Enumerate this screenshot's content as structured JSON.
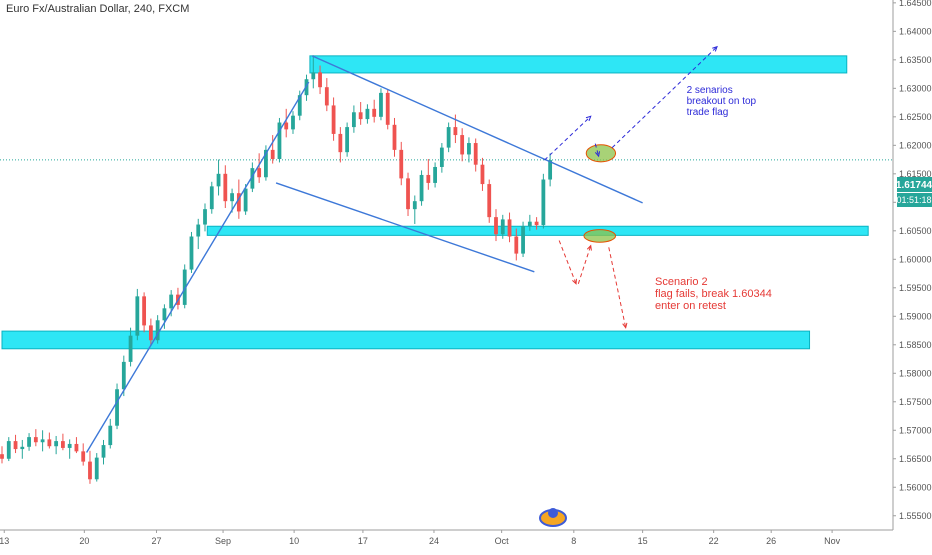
{
  "header": {
    "title": "Euro Fx/Australian Dollar, 240, FXCM"
  },
  "price_badge": {
    "price": "1.61744",
    "countdown": "01:51:18",
    "color": "#26a69a"
  },
  "chart_data": {
    "type": "candlestick",
    "yaxis": {
      "range": [
        1.5525,
        1.6455
      ],
      "ticks": [
        "1.55500",
        "1.56000",
        "1.56500",
        "1.57000",
        "1.57500",
        "1.58000",
        "1.58500",
        "1.59000",
        "1.59500",
        "1.60000",
        "1.60500",
        "1.61000",
        "1.61500",
        "1.62000",
        "1.62500",
        "1.63000",
        "1.63500",
        "1.64000",
        "1.64500"
      ]
    },
    "xaxis": {
      "range": [
        0,
        79
      ],
      "ticks": [
        {
          "label": "13",
          "x": 0.2
        },
        {
          "label": "20",
          "x": 7.3
        },
        {
          "label": "27",
          "x": 13.7
        },
        {
          "label": "Sep",
          "x": 19.6
        },
        {
          "label": "10",
          "x": 25.9
        },
        {
          "label": "17",
          "x": 32.0
        },
        {
          "label": "24",
          "x": 38.3
        },
        {
          "label": "Oct",
          "x": 44.3
        },
        {
          "label": "8",
          "x": 50.7
        },
        {
          "label": "15",
          "x": 56.8
        },
        {
          "label": "22",
          "x": 63.1
        },
        {
          "label": "26",
          "x": 68.2
        },
        {
          "label": "Nov",
          "x": 73.6
        }
      ]
    },
    "colors": {
      "up": "#26a69a",
      "down": "#ef5350",
      "zone": "#2ee6f5",
      "zone_edge": "#0ab3c2",
      "trend": "#3d78d8",
      "blue_note": "#2d2ad8",
      "red_note": "#e53935"
    },
    "zones": [
      {
        "x0": 27.3,
        "x1": 74.9,
        "y0": 1.6327,
        "y1": 1.6357
      },
      {
        "x0": 18.2,
        "x1": 76.8,
        "y0": 1.6042,
        "y1": 1.6058
      },
      {
        "x0": 0.0,
        "x1": 71.6,
        "y0": 1.5843,
        "y1": 1.5874
      }
    ],
    "trendlines": [
      {
        "x0": 7.5,
        "y0": 1.5661,
        "x1": 27.2,
        "y1": 1.6311
      },
      {
        "x0": 27.5,
        "y0": 1.6357,
        "x1": 56.8,
        "y1": 1.6099
      },
      {
        "x0": 24.3,
        "y0": 1.6134,
        "x1": 47.2,
        "y1": 1.5978
      }
    ],
    "ellipses": [
      {
        "cx": 53.1,
        "cy": 1.6186,
        "rx": 1.3,
        "ry": 0.0015
      },
      {
        "cx": 53.0,
        "cy": 1.6041,
        "rx": 1.4,
        "ry": 0.0011
      }
    ],
    "dashed_blue": [
      [
        [
          48.1,
          1.6174
        ],
        [
          52.2,
          1.6251
        ]
      ],
      [
        [
          52.6,
          1.6203
        ],
        [
          52.9,
          1.6181
        ]
      ],
      [
        [
          54.1,
          1.6196
        ],
        [
          63.4,
          1.6373
        ]
      ]
    ],
    "dashed_red": [
      [
        [
          49.4,
          1.6033
        ],
        [
          50.9,
          1.5957
        ]
      ],
      [
        [
          51.1,
          1.5957
        ],
        [
          52.2,
          1.6024
        ]
      ],
      [
        [
          53.8,
          1.6021
        ],
        [
          55.3,
          1.588
        ]
      ]
    ],
    "annotations": [
      {
        "lines": [
          "2 senarios",
          "breakout on top",
          "trade flag"
        ],
        "x": 60.7,
        "y": 1.6292,
        "color": "blue_note"
      },
      {
        "lines": [
          "Scenario 2",
          "flag fails, break 1.60344",
          "enter on retest"
        ],
        "x": 57.9,
        "y": 1.5955,
        "color": "red_note"
      }
    ],
    "last_price": 1.61744,
    "candles": [
      {
        "x": 0.0,
        "o": 1.5658,
        "h": 1.5672,
        "l": 1.5642,
        "c": 1.565
      },
      {
        "x": 0.6,
        "o": 1.565,
        "h": 1.5688,
        "l": 1.5646,
        "c": 1.5681
      },
      {
        "x": 1.2,
        "o": 1.5681,
        "h": 1.5692,
        "l": 1.566,
        "c": 1.5667
      },
      {
        "x": 1.8,
        "o": 1.5667,
        "h": 1.5683,
        "l": 1.565,
        "c": 1.5671
      },
      {
        "x": 2.4,
        "o": 1.5671,
        "h": 1.5695,
        "l": 1.5664,
        "c": 1.5688
      },
      {
        "x": 3.0,
        "o": 1.5688,
        "h": 1.5702,
        "l": 1.5672,
        "c": 1.5679
      },
      {
        "x": 3.6,
        "o": 1.5679,
        "h": 1.57,
        "l": 1.5663,
        "c": 1.5684
      },
      {
        "x": 4.2,
        "o": 1.5684,
        "h": 1.5696,
        "l": 1.5668,
        "c": 1.5672
      },
      {
        "x": 4.8,
        "o": 1.5672,
        "h": 1.569,
        "l": 1.5658,
        "c": 1.5681
      },
      {
        "x": 5.4,
        "o": 1.5681,
        "h": 1.5694,
        "l": 1.5665,
        "c": 1.5669
      },
      {
        "x": 6.0,
        "o": 1.5669,
        "h": 1.5684,
        "l": 1.565,
        "c": 1.5676
      },
      {
        "x": 6.6,
        "o": 1.5676,
        "h": 1.5688,
        "l": 1.566,
        "c": 1.5663
      },
      {
        "x": 7.2,
        "o": 1.5663,
        "h": 1.5677,
        "l": 1.5638,
        "c": 1.5645
      },
      {
        "x": 7.8,
        "o": 1.5645,
        "h": 1.5664,
        "l": 1.5606,
        "c": 1.5614
      },
      {
        "x": 8.4,
        "o": 1.5614,
        "h": 1.566,
        "l": 1.561,
        "c": 1.5652
      },
      {
        "x": 9.0,
        "o": 1.5652,
        "h": 1.5683,
        "l": 1.564,
        "c": 1.5674
      },
      {
        "x": 9.6,
        "o": 1.5674,
        "h": 1.572,
        "l": 1.5668,
        "c": 1.5708
      },
      {
        "x": 10.2,
        "o": 1.5708,
        "h": 1.5782,
        "l": 1.5702,
        "c": 1.5772
      },
      {
        "x": 10.8,
        "o": 1.5772,
        "h": 1.5831,
        "l": 1.576,
        "c": 1.582
      },
      {
        "x": 11.4,
        "o": 1.582,
        "h": 1.588,
        "l": 1.5812,
        "c": 1.5866
      },
      {
        "x": 12.0,
        "o": 1.5866,
        "h": 1.5948,
        "l": 1.5858,
        "c": 1.5935
      },
      {
        "x": 12.6,
        "o": 1.5935,
        "h": 1.5942,
        "l": 1.5872,
        "c": 1.5884
      },
      {
        "x": 13.2,
        "o": 1.5884,
        "h": 1.5896,
        "l": 1.5848,
        "c": 1.5858
      },
      {
        "x": 13.8,
        "o": 1.5858,
        "h": 1.5902,
        "l": 1.5852,
        "c": 1.5893
      },
      {
        "x": 14.4,
        "o": 1.5893,
        "h": 1.5921,
        "l": 1.5878,
        "c": 1.5914
      },
      {
        "x": 15.0,
        "o": 1.5914,
        "h": 1.5946,
        "l": 1.59,
        "c": 1.5938
      },
      {
        "x": 15.6,
        "o": 1.5938,
        "h": 1.595,
        "l": 1.5912,
        "c": 1.592
      },
      {
        "x": 16.2,
        "o": 1.592,
        "h": 1.5991,
        "l": 1.5914,
        "c": 1.5982
      },
      {
        "x": 16.8,
        "o": 1.5982,
        "h": 1.6048,
        "l": 1.5976,
        "c": 1.604
      },
      {
        "x": 17.4,
        "o": 1.604,
        "h": 1.6071,
        "l": 1.6018,
        "c": 1.6061
      },
      {
        "x": 18.0,
        "o": 1.6061,
        "h": 1.6098,
        "l": 1.6049,
        "c": 1.6088
      },
      {
        "x": 18.6,
        "o": 1.6088,
        "h": 1.6136,
        "l": 1.608,
        "c": 1.6128
      },
      {
        "x": 19.2,
        "o": 1.6128,
        "h": 1.6175,
        "l": 1.6112,
        "c": 1.615
      },
      {
        "x": 19.8,
        "o": 1.615,
        "h": 1.6165,
        "l": 1.609,
        "c": 1.6102
      },
      {
        "x": 20.4,
        "o": 1.6102,
        "h": 1.6124,
        "l": 1.6082,
        "c": 1.6116
      },
      {
        "x": 21.0,
        "o": 1.6116,
        "h": 1.614,
        "l": 1.6071,
        "c": 1.6084
      },
      {
        "x": 21.6,
        "o": 1.6084,
        "h": 1.6132,
        "l": 1.6078,
        "c": 1.6124
      },
      {
        "x": 22.2,
        "o": 1.6124,
        "h": 1.617,
        "l": 1.6118,
        "c": 1.616
      },
      {
        "x": 22.8,
        "o": 1.616,
        "h": 1.6186,
        "l": 1.6134,
        "c": 1.6144
      },
      {
        "x": 23.4,
        "o": 1.6144,
        "h": 1.62,
        "l": 1.6138,
        "c": 1.6192
      },
      {
        "x": 24.0,
        "o": 1.6192,
        "h": 1.6218,
        "l": 1.6168,
        "c": 1.6176
      },
      {
        "x": 24.6,
        "o": 1.6176,
        "h": 1.6248,
        "l": 1.617,
        "c": 1.624
      },
      {
        "x": 25.2,
        "o": 1.624,
        "h": 1.6264,
        "l": 1.6214,
        "c": 1.6228
      },
      {
        "x": 25.8,
        "o": 1.6228,
        "h": 1.626,
        "l": 1.622,
        "c": 1.6252
      },
      {
        "x": 26.4,
        "o": 1.6252,
        "h": 1.6296,
        "l": 1.6244,
        "c": 1.6288
      },
      {
        "x": 27.0,
        "o": 1.6288,
        "h": 1.6324,
        "l": 1.6278,
        "c": 1.6316
      },
      {
        "x": 27.6,
        "o": 1.6316,
        "h": 1.6358,
        "l": 1.63,
        "c": 1.6328
      },
      {
        "x": 28.2,
        "o": 1.6328,
        "h": 1.634,
        "l": 1.629,
        "c": 1.6302
      },
      {
        "x": 28.8,
        "o": 1.6302,
        "h": 1.6318,
        "l": 1.626,
        "c": 1.627
      },
      {
        "x": 29.4,
        "o": 1.627,
        "h": 1.6284,
        "l": 1.6208,
        "c": 1.622
      },
      {
        "x": 30.0,
        "o": 1.622,
        "h": 1.6232,
        "l": 1.617,
        "c": 1.6188
      },
      {
        "x": 30.6,
        "o": 1.6188,
        "h": 1.624,
        "l": 1.618,
        "c": 1.6232
      },
      {
        "x": 31.2,
        "o": 1.6232,
        "h": 1.627,
        "l": 1.6222,
        "c": 1.6258
      },
      {
        "x": 31.8,
        "o": 1.6258,
        "h": 1.6276,
        "l": 1.6236,
        "c": 1.6246
      },
      {
        "x": 32.4,
        "o": 1.6246,
        "h": 1.6272,
        "l": 1.6238,
        "c": 1.6264
      },
      {
        "x": 33.0,
        "o": 1.6264,
        "h": 1.628,
        "l": 1.624,
        "c": 1.625
      },
      {
        "x": 33.6,
        "o": 1.625,
        "h": 1.63,
        "l": 1.6244,
        "c": 1.6292
      },
      {
        "x": 34.2,
        "o": 1.6292,
        "h": 1.6298,
        "l": 1.6228,
        "c": 1.6236
      },
      {
        "x": 34.8,
        "o": 1.6236,
        "h": 1.6248,
        "l": 1.618,
        "c": 1.6192
      },
      {
        "x": 35.4,
        "o": 1.6192,
        "h": 1.6206,
        "l": 1.613,
        "c": 1.6142
      },
      {
        "x": 36.0,
        "o": 1.6142,
        "h": 1.6152,
        "l": 1.6076,
        "c": 1.6088
      },
      {
        "x": 36.6,
        "o": 1.6088,
        "h": 1.6112,
        "l": 1.6062,
        "c": 1.6102
      },
      {
        "x": 37.2,
        "o": 1.6102,
        "h": 1.6156,
        "l": 1.6094,
        "c": 1.6148
      },
      {
        "x": 37.8,
        "o": 1.6148,
        "h": 1.6176,
        "l": 1.6122,
        "c": 1.6134
      },
      {
        "x": 38.4,
        "o": 1.6134,
        "h": 1.617,
        "l": 1.6126,
        "c": 1.6162
      },
      {
        "x": 39.0,
        "o": 1.6162,
        "h": 1.6204,
        "l": 1.6152,
        "c": 1.6196
      },
      {
        "x": 39.6,
        "o": 1.6196,
        "h": 1.624,
        "l": 1.6188,
        "c": 1.6232
      },
      {
        "x": 40.2,
        "o": 1.6232,
        "h": 1.6254,
        "l": 1.6204,
        "c": 1.6218
      },
      {
        "x": 40.8,
        "o": 1.6218,
        "h": 1.623,
        "l": 1.6172,
        "c": 1.6184
      },
      {
        "x": 41.4,
        "o": 1.6184,
        "h": 1.6214,
        "l": 1.617,
        "c": 1.6204
      },
      {
        "x": 42.0,
        "o": 1.6204,
        "h": 1.6212,
        "l": 1.6154,
        "c": 1.6166
      },
      {
        "x": 42.6,
        "o": 1.6166,
        "h": 1.6178,
        "l": 1.612,
        "c": 1.6132
      },
      {
        "x": 43.2,
        "o": 1.6132,
        "h": 1.614,
        "l": 1.6064,
        "c": 1.6074
      },
      {
        "x": 43.8,
        "o": 1.6074,
        "h": 1.6088,
        "l": 1.6032,
        "c": 1.6044
      },
      {
        "x": 44.4,
        "o": 1.6044,
        "h": 1.6078,
        "l": 1.6036,
        "c": 1.607
      },
      {
        "x": 45.0,
        "o": 1.607,
        "h": 1.6082,
        "l": 1.603,
        "c": 1.604
      },
      {
        "x": 45.6,
        "o": 1.604,
        "h": 1.6054,
        "l": 1.5998,
        "c": 1.601
      },
      {
        "x": 46.2,
        "o": 1.601,
        "h": 1.6066,
        "l": 1.6004,
        "c": 1.6058
      },
      {
        "x": 46.8,
        "o": 1.6058,
        "h": 1.6078,
        "l": 1.605,
        "c": 1.6066
      },
      {
        "x": 47.4,
        "o": 1.6066,
        "h": 1.6074,
        "l": 1.6052,
        "c": 1.606
      },
      {
        "x": 48.0,
        "o": 1.606,
        "h": 1.615,
        "l": 1.6054,
        "c": 1.614
      },
      {
        "x": 48.6,
        "o": 1.614,
        "h": 1.6186,
        "l": 1.6128,
        "c": 1.6174
      }
    ]
  }
}
